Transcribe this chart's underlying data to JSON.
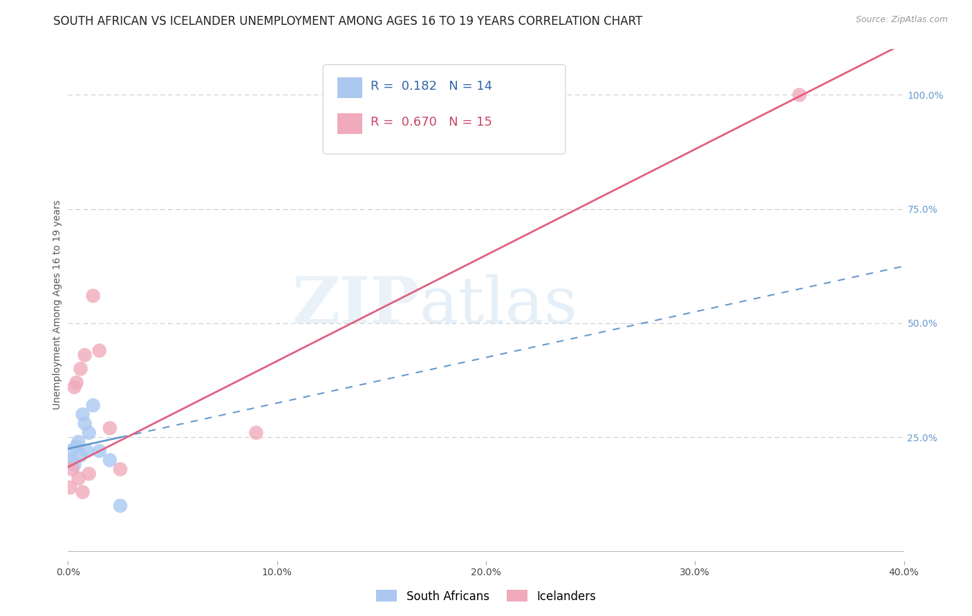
{
  "title": "SOUTH AFRICAN VS ICELANDER UNEMPLOYMENT AMONG AGES 16 TO 19 YEARS CORRELATION CHART",
  "source": "Source: ZipAtlas.com",
  "ylabel": "Unemployment Among Ages 16 to 19 years",
  "xlim": [
    0.0,
    0.4
  ],
  "ylim": [
    -0.02,
    1.1
  ],
  "xticks": [
    0.0,
    0.1,
    0.2,
    0.3,
    0.4
  ],
  "xtick_labels": [
    "0.0%",
    "10.0%",
    "20.0%",
    "30.0%",
    "40.0%"
  ],
  "yticks_right": [
    0.25,
    0.5,
    0.75,
    1.0
  ],
  "ytick_labels_right": [
    "25.0%",
    "50.0%",
    "75.0%",
    "100.0%"
  ],
  "south_african_x": [
    0.001,
    0.002,
    0.003,
    0.004,
    0.005,
    0.006,
    0.007,
    0.008,
    0.009,
    0.01,
    0.012,
    0.015,
    0.02,
    0.025
  ],
  "south_african_y": [
    0.22,
    0.2,
    0.19,
    0.23,
    0.24,
    0.21,
    0.3,
    0.28,
    0.22,
    0.26,
    0.32,
    0.22,
    0.2,
    0.1
  ],
  "icelander_x": [
    0.001,
    0.002,
    0.003,
    0.004,
    0.005,
    0.006,
    0.007,
    0.008,
    0.01,
    0.012,
    0.015,
    0.02,
    0.025,
    0.09,
    0.35
  ],
  "icelander_y": [
    0.14,
    0.18,
    0.36,
    0.37,
    0.16,
    0.4,
    0.13,
    0.43,
    0.17,
    0.56,
    0.44,
    0.27,
    0.18,
    0.26,
    1.0
  ],
  "south_african_color": "#aac8f0",
  "icelander_color": "#f0aabb",
  "south_african_line_color": "#6699cc",
  "icelander_line_color": "#e06080",
  "r_south_african": 0.182,
  "n_south_african": 14,
  "r_icelander": 0.67,
  "n_icelander": 15,
  "watermark_zip": "ZIP",
  "watermark_atlas": "atlas",
  "background_color": "#ffffff",
  "grid_color": "#cccccc",
  "title_fontsize": 12,
  "axis_label_fontsize": 10,
  "tick_fontsize": 10,
  "legend_fontsize": 12,
  "sa_line_intercept": 0.225,
  "sa_line_slope": 1.0,
  "ic_line_intercept": 0.185,
  "ic_line_slope": 2.32
}
